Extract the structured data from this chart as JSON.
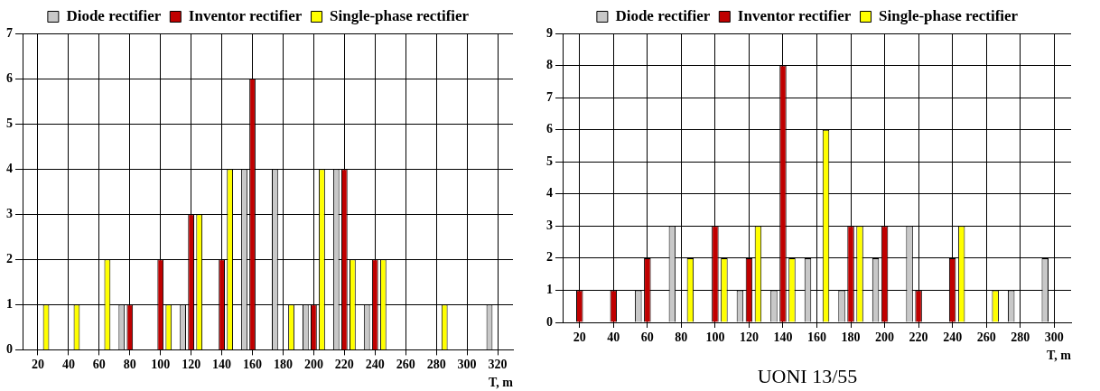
{
  "chart_data": [
    {
      "type": "bar",
      "xlabel": "T, m",
      "categories": [
        "20",
        "40",
        "60",
        "80",
        "100",
        "120",
        "140",
        "160",
        "180",
        "200",
        "220",
        "240",
        "260",
        "280",
        "300",
        "320"
      ],
      "series": [
        {
          "name": "Diode rectifier",
          "color": "#c8c8c8",
          "values": [
            null,
            null,
            null,
            1,
            null,
            1,
            null,
            4,
            4,
            1,
            4,
            1,
            null,
            null,
            null,
            1
          ]
        },
        {
          "name": "Inventor rectifier",
          "color": "#c00000",
          "values": [
            null,
            null,
            null,
            1,
            2,
            3,
            2,
            6,
            null,
            1,
            4,
            2,
            null,
            null,
            null,
            null
          ]
        },
        {
          "name": "Single-phase rectifier",
          "color": "#ffff00",
          "values": [
            1,
            1,
            2,
            null,
            1,
            3,
            4,
            null,
            1,
            4,
            2,
            2,
            null,
            1,
            null,
            null
          ]
        }
      ],
      "ylim": [
        0,
        7
      ],
      "yticks": [
        0,
        1,
        2,
        3,
        4,
        5,
        6,
        7
      ],
      "grid": true,
      "legend": "top"
    },
    {
      "type": "bar",
      "title": "UONI 13/55",
      "xlabel": "T, m",
      "categories": [
        "20",
        "40",
        "60",
        "80",
        "100",
        "120",
        "140",
        "160",
        "180",
        "200",
        "220",
        "240",
        "260",
        "280",
        "300"
      ],
      "series": [
        {
          "name": "Diode rectifier",
          "color": "#c8c8c8",
          "values": [
            null,
            null,
            1,
            3,
            null,
            1,
            1,
            2,
            1,
            2,
            3,
            null,
            null,
            1,
            2
          ]
        },
        {
          "name": "Inventor rectifier",
          "color": "#c00000",
          "values": [
            1,
            1,
            2,
            null,
            3,
            2,
            8,
            null,
            3,
            3,
            1,
            2,
            null,
            null,
            null
          ]
        },
        {
          "name": "Single-phase rectifier",
          "color": "#ffff00",
          "values": [
            null,
            null,
            null,
            2,
            2,
            3,
            2,
            6,
            3,
            null,
            null,
            3,
            1,
            null,
            null
          ]
        }
      ],
      "ylim": [
        0,
        9
      ],
      "yticks": [
        0,
        1,
        2,
        3,
        4,
        5,
        6,
        7,
        8,
        9
      ],
      "grid": true,
      "legend": "top"
    }
  ]
}
